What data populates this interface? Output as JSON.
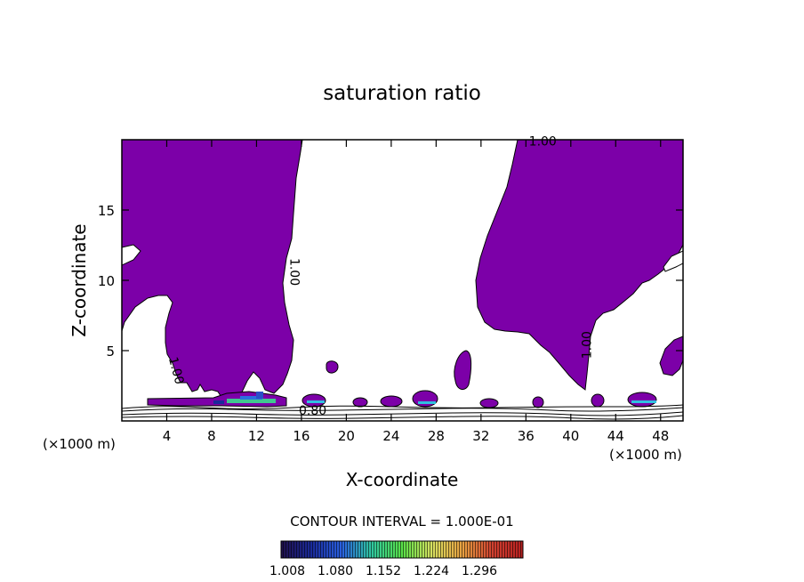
{
  "chart_data": {
    "type": "contour",
    "title": "saturation ratio",
    "xlabel": "X-coordinate",
    "ylabel": "Z-coordinate",
    "x_unit_left": "(×1000 m)",
    "x_unit_right": "(×1000 m)",
    "xlim": [
      0,
      50
    ],
    "ylim": [
      0,
      20
    ],
    "x_ticks": [
      4,
      8,
      12,
      16,
      20,
      24,
      28,
      32,
      36,
      40,
      44,
      48
    ],
    "y_ticks": [
      5,
      10,
      15
    ],
    "fill_color": "#7c00a8",
    "contour_labels": [
      {
        "text": "1.00",
        "x": 37.5,
        "y": 19.6,
        "rotate": 0
      },
      {
        "text": "1.00",
        "x": 15.0,
        "y": 10.6,
        "rotate": 90
      },
      {
        "text": "1.00",
        "x": 41.8,
        "y": 5.4,
        "rotate": -90
      },
      {
        "text": "1.00",
        "x": 4.5,
        "y": 3.5,
        "rotate": 75
      },
      {
        "text": "0.80",
        "x": 17.0,
        "y": 0.45,
        "rotate": 0
      }
    ],
    "contour_interval_text": "CONTOUR INTERVAL = 1.000E-01",
    "colorbar": {
      "ticks": [
        "1.008",
        "1.080",
        "1.152",
        "1.224",
        "1.296"
      ],
      "colors": [
        "#20104a",
        "#1a2a9a",
        "#2a60e0",
        "#30c8a0",
        "#58e048",
        "#d8e060",
        "#e8a040",
        "#d04030",
        "#b82020"
      ]
    }
  }
}
